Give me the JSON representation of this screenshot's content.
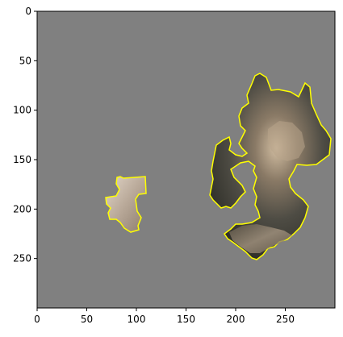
{
  "figure": {
    "background_color": "#ffffff",
    "image_background_color": "#808080",
    "outline_color": "#ffff00",
    "x_axis": {
      "tick_labels": [
        "0",
        "50",
        "100",
        "150",
        "200",
        "250"
      ],
      "range": [
        0,
        300
      ]
    },
    "y_axis": {
      "tick_labels": [
        "0",
        "50",
        "100",
        "150",
        "200",
        "250"
      ],
      "range": [
        0,
        300
      ],
      "inverted": true
    }
  },
  "image_content": {
    "segments": [
      {
        "name": "left-small-patch",
        "colors": [
          "#b8a898",
          "#d8ccbc",
          "#9a8878"
        ]
      },
      {
        "name": "right-large-patch",
        "colors": [
          "#3a3a34",
          "#5a5a52",
          "#8a7a66",
          "#c8b49a"
        ]
      }
    ]
  }
}
